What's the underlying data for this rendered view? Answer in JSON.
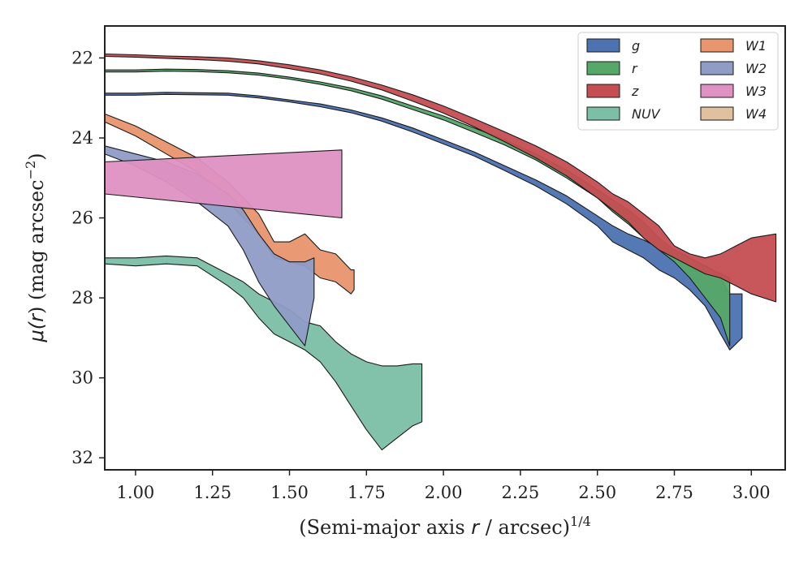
{
  "chart_data": {
    "type": "area",
    "title": "",
    "xlabel": "(Semi-major axis r / arcsec)^{1/4}",
    "ylabel": "μ(r) (mag arcsec⁻²)",
    "xlabel_parts": {
      "pre": "(Semi-major axis ",
      "var": "r",
      "mid": " / arcsec)",
      "sup": "1/4"
    },
    "ylabel_parts": {
      "mu": "μ(",
      "var": "r",
      "rest": ") (mag arcsec",
      "sup": "−2",
      "close": ")"
    },
    "xlim": [
      0.9,
      3.11
    ],
    "ylim": [
      32.3,
      21.2
    ],
    "y_inverted": true,
    "xticks": [
      "1.00",
      "1.25",
      "1.50",
      "1.75",
      "2.00",
      "2.25",
      "2.50",
      "2.75",
      "3.00"
    ],
    "yticks": [
      "22",
      "24",
      "26",
      "28",
      "30",
      "32"
    ],
    "grid": false,
    "legend_position": "top-right",
    "legend_columns": 2,
    "series": [
      {
        "name": "g",
        "color": "#4c72b0",
        "x": [
          0.9,
          1.0,
          1.1,
          1.2,
          1.3,
          1.4,
          1.5,
          1.6,
          1.7,
          1.8,
          1.9,
          2.0,
          2.1,
          2.2,
          2.3,
          2.4,
          2.5,
          2.55,
          2.6,
          2.65,
          2.7,
          2.75,
          2.8,
          2.85,
          2.9,
          2.93,
          2.97
        ],
        "y_bright": [
          22.88,
          22.88,
          22.86,
          22.87,
          22.88,
          22.95,
          23.05,
          23.15,
          23.3,
          23.5,
          23.75,
          24.05,
          24.35,
          24.7,
          25.05,
          25.45,
          25.95,
          26.2,
          26.4,
          26.55,
          26.75,
          26.8,
          27.0,
          27.2,
          27.5,
          27.9,
          27.9
        ],
        "y_faint": [
          22.93,
          22.93,
          22.91,
          22.92,
          22.93,
          23.0,
          23.1,
          23.22,
          23.37,
          23.58,
          23.85,
          24.15,
          24.45,
          24.82,
          25.2,
          25.65,
          26.2,
          26.6,
          26.8,
          27.0,
          27.3,
          27.5,
          27.8,
          28.2,
          28.9,
          29.3,
          29.0
        ]
      },
      {
        "name": "r",
        "color": "#55a868",
        "x": [
          0.9,
          1.0,
          1.1,
          1.2,
          1.3,
          1.4,
          1.5,
          1.6,
          1.7,
          1.8,
          1.9,
          2.0,
          2.1,
          2.2,
          2.3,
          2.4,
          2.5,
          2.55,
          2.6,
          2.65,
          2.7,
          2.75,
          2.8,
          2.85,
          2.9,
          2.93
        ],
        "y_bright": [
          22.3,
          22.3,
          22.28,
          22.29,
          22.32,
          22.38,
          22.48,
          22.6,
          22.75,
          22.95,
          23.2,
          23.45,
          23.75,
          24.05,
          24.4,
          24.8,
          25.3,
          25.55,
          25.8,
          26.1,
          26.5,
          26.8,
          27.0,
          27.2,
          27.4,
          27.5
        ],
        "y_faint": [
          22.35,
          22.35,
          22.33,
          22.34,
          22.37,
          22.43,
          22.53,
          22.66,
          22.82,
          23.03,
          23.29,
          23.55,
          23.86,
          24.18,
          24.55,
          25.0,
          25.5,
          25.85,
          26.15,
          26.5,
          26.8,
          27.1,
          27.5,
          28.0,
          28.5,
          29.2
        ]
      },
      {
        "name": "z",
        "color": "#c44e52",
        "x": [
          0.9,
          1.0,
          1.1,
          1.2,
          1.3,
          1.4,
          1.5,
          1.6,
          1.7,
          1.8,
          1.9,
          2.0,
          2.1,
          2.2,
          2.3,
          2.4,
          2.5,
          2.55,
          2.6,
          2.65,
          2.7,
          2.75,
          2.8,
          2.85,
          2.9,
          2.95,
          3.0,
          3.08
        ],
        "y_bright": [
          21.9,
          21.92,
          21.95,
          21.97,
          22.0,
          22.07,
          22.17,
          22.3,
          22.47,
          22.68,
          22.92,
          23.2,
          23.52,
          23.85,
          24.2,
          24.6,
          25.1,
          25.4,
          25.6,
          25.9,
          26.2,
          26.7,
          26.9,
          27.0,
          26.9,
          26.7,
          26.5,
          26.4
        ],
        "y_faint": [
          21.96,
          21.98,
          22.01,
          22.04,
          22.08,
          22.15,
          22.27,
          22.4,
          22.58,
          22.8,
          23.08,
          23.38,
          23.72,
          24.1,
          24.5,
          24.95,
          25.5,
          25.8,
          26.1,
          26.5,
          26.8,
          27.0,
          27.2,
          27.4,
          27.5,
          27.7,
          27.9,
          28.1
        ]
      },
      {
        "name": "NUV",
        "color": "#7bbfa6",
        "x": [
          0.9,
          1.0,
          1.1,
          1.2,
          1.3,
          1.35,
          1.4,
          1.45,
          1.5,
          1.55,
          1.6,
          1.65,
          1.7,
          1.75,
          1.8,
          1.85,
          1.9,
          1.93
        ],
        "y_bright": [
          27.0,
          27.0,
          26.95,
          27.0,
          27.4,
          27.6,
          27.9,
          28.1,
          28.3,
          28.6,
          28.7,
          29.1,
          29.4,
          29.6,
          29.7,
          29.7,
          29.65,
          29.65
        ],
        "y_faint": [
          27.15,
          27.2,
          27.15,
          27.2,
          27.7,
          28.0,
          28.5,
          28.9,
          29.1,
          29.3,
          29.6,
          30.1,
          30.7,
          31.3,
          31.8,
          31.5,
          31.2,
          31.1
        ]
      },
      {
        "name": "W1",
        "color": "#e8956e",
        "x": [
          0.9,
          1.0,
          1.1,
          1.2,
          1.3,
          1.4,
          1.45,
          1.5,
          1.55,
          1.6,
          1.65,
          1.7,
          1.71
        ],
        "y_bright": [
          23.4,
          23.7,
          24.1,
          24.5,
          25.1,
          25.9,
          26.6,
          26.6,
          26.4,
          26.8,
          26.9,
          27.3,
          27.3
        ],
        "y_faint": [
          23.6,
          23.95,
          24.4,
          24.85,
          25.6,
          26.4,
          27.0,
          27.1,
          27.2,
          27.5,
          27.6,
          27.9,
          27.8
        ]
      },
      {
        "name": "W2",
        "color": "#8f9cc6",
        "x": [
          0.9,
          1.0,
          1.1,
          1.2,
          1.3,
          1.35,
          1.4,
          1.45,
          1.5,
          1.55,
          1.58
        ],
        "y_bright": [
          24.2,
          24.4,
          24.6,
          24.9,
          25.4,
          25.8,
          26.4,
          26.9,
          27.1,
          27.1,
          27.0
        ],
        "y_faint": [
          24.4,
          24.7,
          25.1,
          25.6,
          26.2,
          26.8,
          27.6,
          28.2,
          28.7,
          29.2,
          28.0
        ]
      },
      {
        "name": "W3",
        "color": "#de91c2",
        "x": [
          0.9,
          1.67
        ],
        "y_bright": [
          24.6,
          24.3
        ],
        "y_faint": [
          25.4,
          26.0
        ]
      },
      {
        "name": "W4",
        "color": "#dfc09f",
        "x": [],
        "y_bright": [],
        "y_faint": []
      }
    ]
  }
}
